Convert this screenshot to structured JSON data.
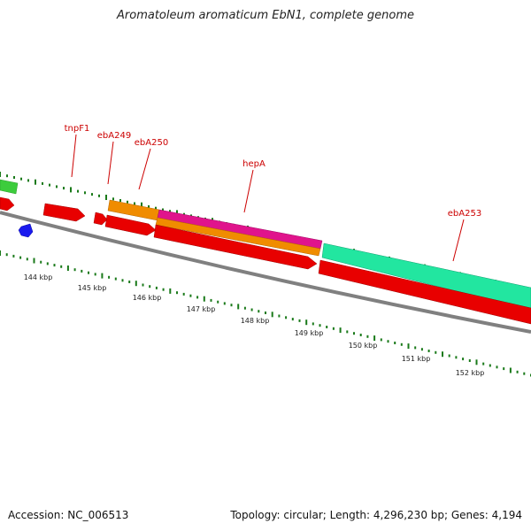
{
  "title": "Aromatoleum aromaticum EbN1, complete genome",
  "accession_text": "Accession: NC_006513",
  "stats_text": "Topology: circular; Length: 4,296,230 bp; Genes: 4,194",
  "colors": {
    "background": "#ffffff",
    "backbone": "#808080",
    "tick": "#1a7a1a",
    "label": "#cc0000",
    "gene_red": "#e80000",
    "gene_orange": "#f08c00",
    "gene_magenta": "#e0148c",
    "gene_cyan": "#22e6a0",
    "gene_green": "#3ccc3c",
    "gene_blue": "#1a1aee"
  },
  "kbp_labels": [
    "144 kbp",
    "145 kbp",
    "146 kbp",
    "147 kbp",
    "148 kbp",
    "149 kbp",
    "150 kbp",
    "151 kbp",
    "152 kbp"
  ],
  "gene_labels": [
    "tnpF1",
    "ebA249",
    "ebA250",
    "hepA",
    "ebA253"
  ]
}
